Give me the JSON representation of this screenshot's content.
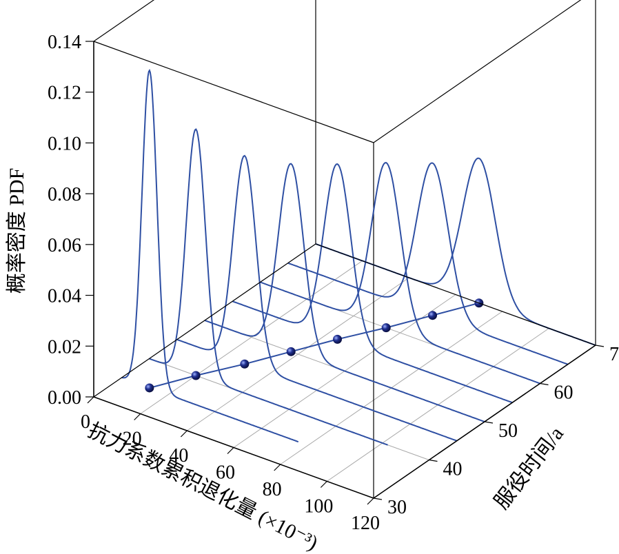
{
  "chart_data": {
    "type": "3d-line",
    "zlabel": "概率密度 PDF",
    "xlabel": "抗力系数累积退化量 (×10⁻³)",
    "ylabel": "服役时间/a",
    "x_ticks": [
      "0",
      "20",
      "40",
      "60",
      "80",
      "100",
      "120"
    ],
    "y_ticks": [
      "30",
      "40",
      "50",
      "60",
      "70"
    ],
    "z_ticks": [
      "0.00",
      "0.02",
      "0.04",
      "0.06",
      "0.08",
      "0.10",
      "0.12",
      "0.14"
    ],
    "xlim": [
      0,
      120
    ],
    "ylim": [
      30,
      70
    ],
    "zlim": [
      0,
      0.14
    ],
    "grid": true,
    "series_color": "#2e4fa3",
    "marker_color": "#1f2f8f",
    "curves": [
      {
        "time": 35,
        "mean": 12,
        "peak": 0.125
      },
      {
        "time": 40,
        "mean": 20,
        "peak": 0.097
      },
      {
        "time": 45,
        "mean": 29,
        "peak": 0.082
      },
      {
        "time": 50,
        "mean": 37,
        "peak": 0.074
      },
      {
        "time": 55,
        "mean": 45,
        "peak": 0.069
      },
      {
        "time": 60,
        "mean": 54,
        "peak": 0.065
      },
      {
        "time": 65,
        "mean": 62,
        "peak": 0.06
      },
      {
        "time": 70,
        "mean": 70,
        "peak": 0.057
      }
    ]
  }
}
